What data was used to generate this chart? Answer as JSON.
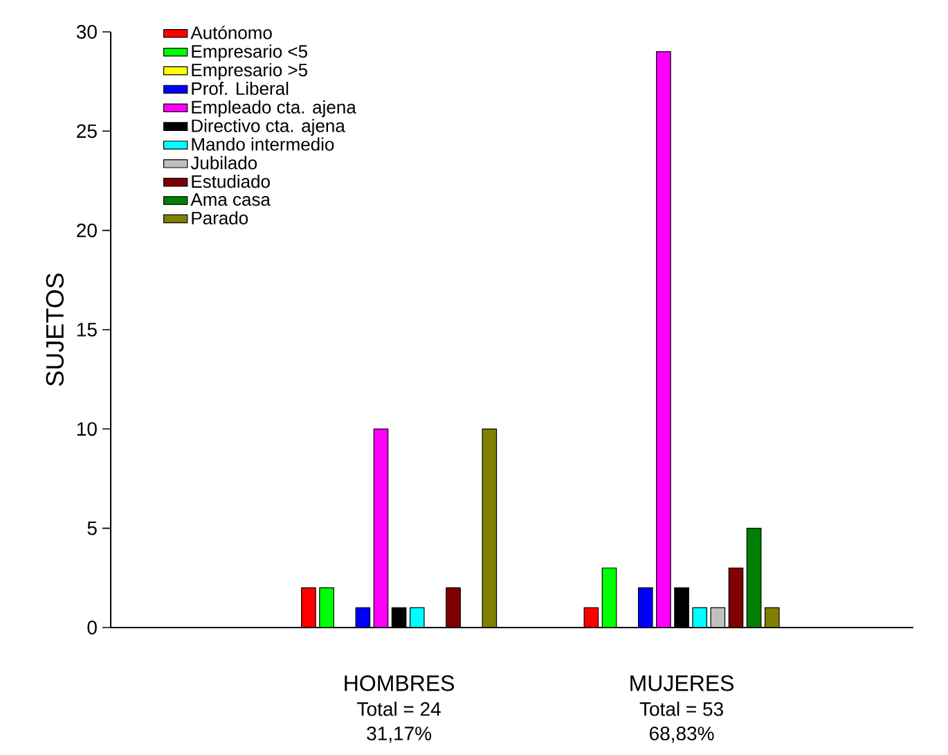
{
  "chart_data": {
    "type": "bar",
    "ylabel": "SUJETOS",
    "categories": [
      "HOMBRES",
      "MUJERES"
    ],
    "ylim": [
      0,
      30
    ],
    "yticks": [
      0,
      5,
      10,
      15,
      20,
      25,
      30
    ],
    "legend": "top left",
    "series": [
      {
        "name": "Autónomo",
        "color": "#ff0000",
        "values": [
          2,
          1
        ]
      },
      {
        "name": "Empresario <5",
        "color": "#00ff00",
        "values": [
          2,
          3
        ]
      },
      {
        "name": "Empresario >5",
        "color": "#ffff00",
        "values": [
          null,
          null
        ]
      },
      {
        "name": "Prof. Liberal",
        "color": "#0000ff",
        "values": [
          1,
          2
        ]
      },
      {
        "name": "Empleado cta. ajena",
        "color": "#ff00ff",
        "values": [
          10,
          29
        ]
      },
      {
        "name": "Directivo cta. ajena",
        "color": "#000000",
        "values": [
          1,
          2
        ]
      },
      {
        "name": "Mando intermedio",
        "color": "#00ffff",
        "values": [
          1,
          1
        ]
      },
      {
        "name": "Jubilado",
        "color": "#c0c0c0",
        "values": [
          null,
          1
        ]
      },
      {
        "name": "Estudiado",
        "color": "#800000",
        "values": [
          2,
          3
        ]
      },
      {
        "name": "Ama casa",
        "color": "#008000",
        "values": [
          null,
          5
        ]
      },
      {
        "name": "Parado",
        "color": "#808000",
        "values": [
          10,
          1
        ]
      }
    ],
    "annotations": [
      "Total = 24",
      "31,17%",
      "Total = 53",
      "68,83%"
    ]
  }
}
